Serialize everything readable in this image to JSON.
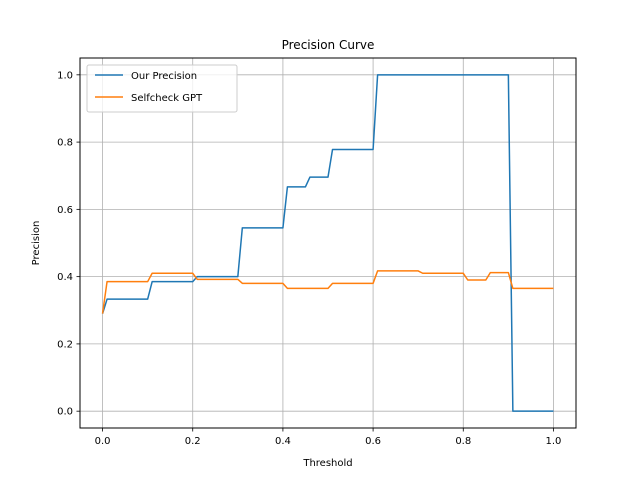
{
  "chart_data": {
    "type": "line",
    "title": "Precision Curve",
    "xlabel": "Threshold",
    "ylabel": "Precision",
    "xlim": [
      -0.05,
      1.05
    ],
    "ylim": [
      -0.05,
      1.05
    ],
    "xticks": [
      0.0,
      0.2,
      0.4,
      0.6,
      0.8,
      1.0
    ],
    "xtick_labels": [
      "0.0",
      "0.2",
      "0.4",
      "0.6",
      "0.8",
      "1.0"
    ],
    "yticks": [
      0.0,
      0.2,
      0.4,
      0.6,
      0.8,
      1.0
    ],
    "ytick_labels": [
      "0.0",
      "0.2",
      "0.4",
      "0.6",
      "0.8",
      "1.0"
    ],
    "grid": true,
    "legend_position": "top-left",
    "series": [
      {
        "name": "Our Precision",
        "color": "#1f77b4",
        "x": [
          0.0,
          0.01,
          0.1,
          0.11,
          0.2,
          0.21,
          0.3,
          0.31,
          0.4,
          0.41,
          0.45,
          0.46,
          0.5,
          0.51,
          0.6,
          0.61,
          0.9,
          0.91,
          1.0
        ],
        "y": [
          0.29,
          0.333,
          0.333,
          0.385,
          0.385,
          0.4,
          0.4,
          0.545,
          0.545,
          0.667,
          0.667,
          0.696,
          0.696,
          0.778,
          0.778,
          1.0,
          1.0,
          0.0,
          0.0
        ]
      },
      {
        "name": "Selfcheck GPT",
        "color": "#ff7f0e",
        "x": [
          0.0,
          0.01,
          0.1,
          0.11,
          0.2,
          0.21,
          0.3,
          0.31,
          0.4,
          0.41,
          0.5,
          0.51,
          0.6,
          0.61,
          0.7,
          0.71,
          0.8,
          0.81,
          0.85,
          0.86,
          0.9,
          0.91,
          1.0
        ],
        "y": [
          0.29,
          0.385,
          0.385,
          0.41,
          0.41,
          0.392,
          0.392,
          0.38,
          0.38,
          0.365,
          0.365,
          0.38,
          0.38,
          0.417,
          0.417,
          0.41,
          0.41,
          0.39,
          0.39,
          0.412,
          0.412,
          0.365,
          0.365
        ]
      }
    ]
  }
}
